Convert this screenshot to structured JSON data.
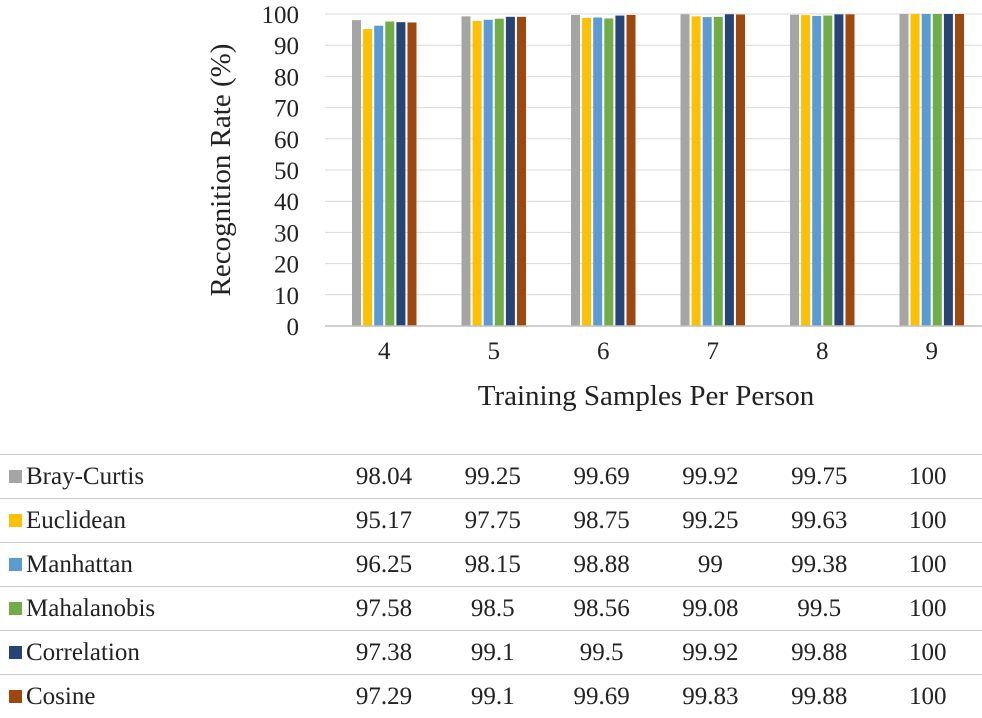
{
  "chart_data": {
    "type": "bar",
    "title": "",
    "xlabel": "Training Samples Per Person",
    "ylabel": "Recognition Rate (%)",
    "ylim": [
      0,
      100
    ],
    "yticks": [
      0,
      10,
      20,
      30,
      40,
      50,
      60,
      70,
      80,
      90,
      100
    ],
    "categories": [
      "4",
      "5",
      "6",
      "7",
      "8",
      "9"
    ],
    "legend_position": "data-table-below",
    "series": [
      {
        "name": "Bray-Curtis",
        "color": "#A5A5A5",
        "values": [
          98.04,
          99.25,
          99.69,
          99.92,
          99.75,
          100
        ],
        "labels": [
          "98.04",
          "99.25",
          "99.69",
          "99.92",
          "99.75",
          "100"
        ]
      },
      {
        "name": "Euclidean",
        "color": "#FFC000",
        "values": [
          95.17,
          97.75,
          98.75,
          99.25,
          99.63,
          100
        ],
        "labels": [
          "95.17",
          "97.75",
          "98.75",
          "99.25",
          "99.63",
          "100"
        ]
      },
      {
        "name": "Manhattan",
        "color": "#5B9BD5",
        "values": [
          96.25,
          98.15,
          98.88,
          99,
          99.38,
          100
        ],
        "labels": [
          "96.25",
          "98.15",
          "98.88",
          "99",
          "99.38",
          "100"
        ]
      },
      {
        "name": "Mahalanobis",
        "color": "#70AD47",
        "values": [
          97.58,
          98.5,
          98.56,
          99.08,
          99.5,
          100
        ],
        "labels": [
          "97.58",
          "98.5",
          "98.56",
          "99.08",
          "99.5",
          "100"
        ]
      },
      {
        "name": "Correlation",
        "color": "#264478",
        "values": [
          97.38,
          99.1,
          99.5,
          99.92,
          99.88,
          100
        ],
        "labels": [
          "97.38",
          "99.1",
          "99.5",
          "99.92",
          "99.88",
          "100"
        ]
      },
      {
        "name": "Cosine",
        "color": "#9E480E",
        "values": [
          97.29,
          99.1,
          99.69,
          99.83,
          99.88,
          100
        ],
        "labels": [
          "97.29",
          "99.1",
          "99.69",
          "99.83",
          "99.88",
          "100"
        ]
      }
    ]
  }
}
